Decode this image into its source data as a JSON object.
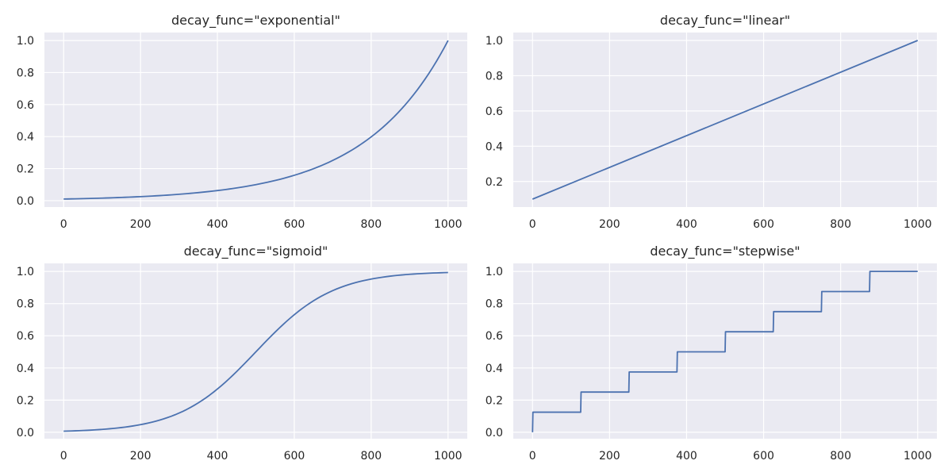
{
  "chart_data": [
    {
      "type": "line",
      "title": "decay_func=\"exponential\"",
      "xlabel": "",
      "ylabel": "",
      "xlim": [
        -50,
        1050
      ],
      "ylim": [
        -0.04,
        1.05
      ],
      "xticks": [
        0,
        200,
        400,
        600,
        800,
        1000
      ],
      "xtick_labels": [
        "0",
        "200",
        "400",
        "600",
        "800",
        "1000"
      ],
      "yticks": [
        0.0,
        0.2,
        0.4,
        0.6,
        0.8,
        1.0
      ],
      "ytick_labels": [
        "0.0",
        "0.2",
        "0.4",
        "0.6",
        "0.8",
        "1.0"
      ],
      "grid": true,
      "series": [
        {
          "x": [
            0,
            50,
            100,
            150,
            200,
            250,
            300,
            350,
            400,
            450,
            500,
            550,
            600,
            650,
            700,
            750,
            800,
            850,
            900,
            950,
            1000
          ],
          "values": [
            0.01,
            0.013,
            0.016,
            0.02,
            0.025,
            0.032,
            0.04,
            0.05,
            0.063,
            0.079,
            0.1,
            0.126,
            0.158,
            0.2,
            0.251,
            0.316,
            0.398,
            0.501,
            0.631,
            0.794,
            1.0
          ]
        }
      ]
    },
    {
      "type": "line",
      "title": "decay_func=\"linear\"",
      "xlabel": "",
      "ylabel": "",
      "xlim": [
        -50,
        1050
      ],
      "ylim": [
        0.055,
        1.045
      ],
      "xticks": [
        0,
        200,
        400,
        600,
        800,
        1000
      ],
      "xtick_labels": [
        "0",
        "200",
        "400",
        "600",
        "800",
        "1000"
      ],
      "yticks": [
        0.2,
        0.4,
        0.6,
        0.8,
        1.0
      ],
      "ytick_labels": [
        "0.2",
        "0.4",
        "0.6",
        "0.8",
        "1.0"
      ],
      "grid": true,
      "series": [
        {
          "x": [
            0,
            1000
          ],
          "values": [
            0.1,
            1.0
          ]
        }
      ]
    },
    {
      "type": "line",
      "title": "decay_func=\"sigmoid\"",
      "xlabel": "",
      "ylabel": "",
      "xlim": [
        -50,
        1050
      ],
      "ylim": [
        -0.04,
        1.05
      ],
      "xticks": [
        0,
        200,
        400,
        600,
        800,
        1000
      ],
      "xtick_labels": [
        "0",
        "200",
        "400",
        "600",
        "800",
        "1000"
      ],
      "yticks": [
        0.0,
        0.2,
        0.4,
        0.6,
        0.8,
        1.0
      ],
      "ytick_labels": [
        "0.0",
        "0.2",
        "0.4",
        "0.6",
        "0.8",
        "1.0"
      ],
      "grid": true,
      "series": [
        {
          "x": [
            0,
            50,
            100,
            150,
            200,
            250,
            300,
            350,
            400,
            450,
            500,
            550,
            600,
            650,
            700,
            750,
            800,
            850,
            900,
            950,
            1000
          ],
          "values": [
            0.007,
            0.012,
            0.018,
            0.029,
            0.047,
            0.076,
            0.119,
            0.182,
            0.269,
            0.378,
            0.5,
            0.622,
            0.731,
            0.818,
            0.881,
            0.924,
            0.953,
            0.971,
            0.982,
            0.989,
            0.993
          ]
        }
      ]
    },
    {
      "type": "line",
      "title": "decay_func=\"stepwise\"",
      "xlabel": "",
      "ylabel": "",
      "xlim": [
        -50,
        1050
      ],
      "ylim": [
        -0.04,
        1.05
      ],
      "xticks": [
        0,
        200,
        400,
        600,
        800,
        1000
      ],
      "xtick_labels": [
        "0",
        "200",
        "400",
        "600",
        "800",
        "1000"
      ],
      "yticks": [
        0.0,
        0.2,
        0.4,
        0.6,
        0.8,
        1.0
      ],
      "ytick_labels": [
        "0.0",
        "0.2",
        "0.4",
        "0.6",
        "0.8",
        "1.0"
      ],
      "grid": true,
      "series": [
        {
          "x": [
            0,
            1,
            125,
            126,
            250,
            251,
            375,
            376,
            500,
            501,
            625,
            626,
            750,
            751,
            875,
            876,
            1000
          ],
          "values": [
            0.0,
            0.125,
            0.125,
            0.25,
            0.25,
            0.375,
            0.375,
            0.5,
            0.5,
            0.625,
            0.625,
            0.75,
            0.75,
            0.875,
            0.875,
            1.0,
            1.0
          ]
        }
      ]
    }
  ],
  "colors": {
    "background": "#eaeaf2",
    "grid": "#ffffff",
    "line": "#4c72b0",
    "text": "#262626"
  }
}
